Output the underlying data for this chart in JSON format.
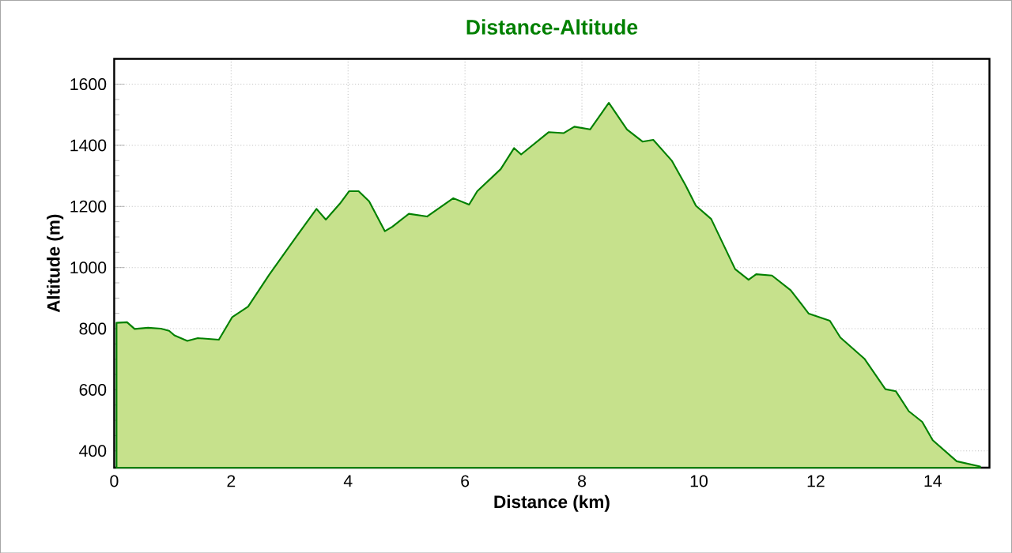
{
  "chart_data": {
    "type": "area",
    "title": "Distance-Altitude",
    "xlabel": "Distance (km)",
    "ylabel": "Altitude (m)",
    "xlim": [
      0,
      14.97
    ],
    "ylim": [
      345,
      1683
    ],
    "xticks": [
      0,
      2,
      4,
      6,
      8,
      10,
      12,
      14
    ],
    "yticks": [
      400,
      600,
      800,
      1000,
      1200,
      1400,
      1600
    ],
    "grid": true,
    "series": [
      {
        "color": "#008000",
        "x": [
          0.04,
          0.22,
          0.35,
          0.58,
          0.8,
          0.94,
          1.03,
          1.25,
          1.43,
          1.79,
          2.02,
          2.29,
          2.65,
          3.1,
          3.46,
          3.62,
          3.86,
          4.02,
          4.18,
          4.36,
          4.63,
          4.76,
          5.04,
          5.35,
          5.8,
          6.07,
          6.21,
          6.61,
          6.84,
          6.96,
          7.43,
          7.69,
          7.87,
          8.14,
          8.46,
          8.77,
          9.04,
          9.22,
          9.54,
          9.77,
          9.95,
          10.21,
          10.62,
          10.85,
          10.98,
          11.25,
          11.57,
          11.88,
          12.24,
          12.42,
          12.83,
          13.19,
          13.37,
          13.59,
          13.82,
          14.0,
          14.41,
          14.81
        ],
        "values": [
          819,
          821,
          799,
          803,
          800,
          793,
          778,
          760,
          769,
          764,
          838,
          872,
          976,
          1097,
          1192,
          1157,
          1209,
          1250,
          1250,
          1217,
          1119,
          1134,
          1176,
          1167,
          1227,
          1206,
          1250,
          1322,
          1391,
          1370,
          1443,
          1440,
          1461,
          1452,
          1539,
          1452,
          1412,
          1418,
          1349,
          1270,
          1202,
          1159,
          995,
          960,
          978,
          974,
          926,
          849,
          826,
          771,
          702,
          602,
          595,
          530,
          495,
          435,
          366,
          349
        ]
      }
    ]
  }
}
